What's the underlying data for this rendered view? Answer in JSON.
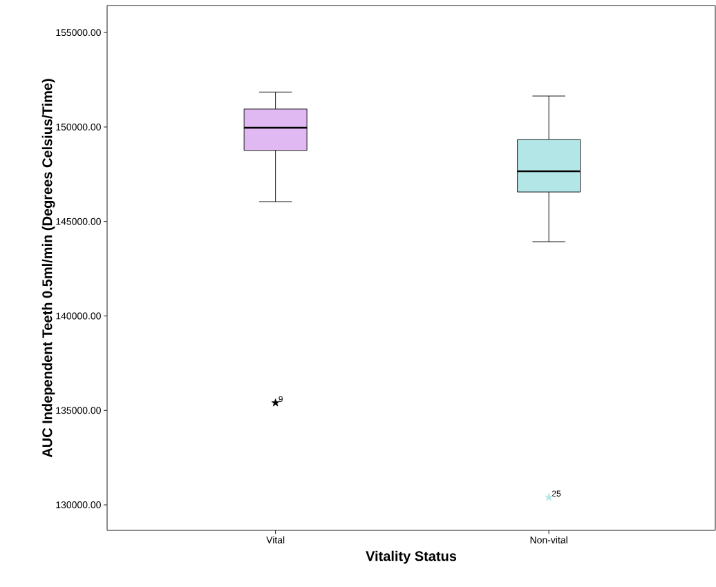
{
  "chart_data": {
    "type": "box",
    "xlabel": "Vitality Status",
    "ylabel": "AUC Independent Teeth  0.5ml/min (Degrees Celsius/Time)",
    "categories": [
      "Vital",
      "Non-vital"
    ],
    "ylim": [
      128650,
      156430
    ],
    "yticks": [
      {
        "value": 130000,
        "label": "130000.00"
      },
      {
        "value": 135000,
        "label": "135000.00"
      },
      {
        "value": 140000,
        "label": "140000.00"
      },
      {
        "value": 145000,
        "label": "145000.00"
      },
      {
        "value": 150000,
        "label": "150000.00"
      },
      {
        "value": 155000,
        "label": "155000.00"
      }
    ],
    "series": [
      {
        "colors": [
          "#e0b8f2",
          "#b3e6e6"
        ],
        "boxes": [
          {
            "low": 146050,
            "q1": 148760,
            "median": 149960,
            "q3": 150950,
            "high": 151850
          },
          {
            "low": 143930,
            "q1": 146560,
            "median": 147660,
            "q3": 149340,
            "high": 151640
          }
        ]
      },
      {
        "type": "scatter",
        "marker": "star",
        "x": [
          "Vital",
          "Non-vital"
        ],
        "values": [
          135400,
          130400
        ],
        "colors": [
          "#000000",
          "#b3e6e6"
        ]
      }
    ],
    "annotations": [
      {
        "text": "9",
        "x": "Vital",
        "y": 135400
      },
      {
        "text": "25",
        "x": "Non-vital",
        "y": 130400
      }
    ]
  }
}
